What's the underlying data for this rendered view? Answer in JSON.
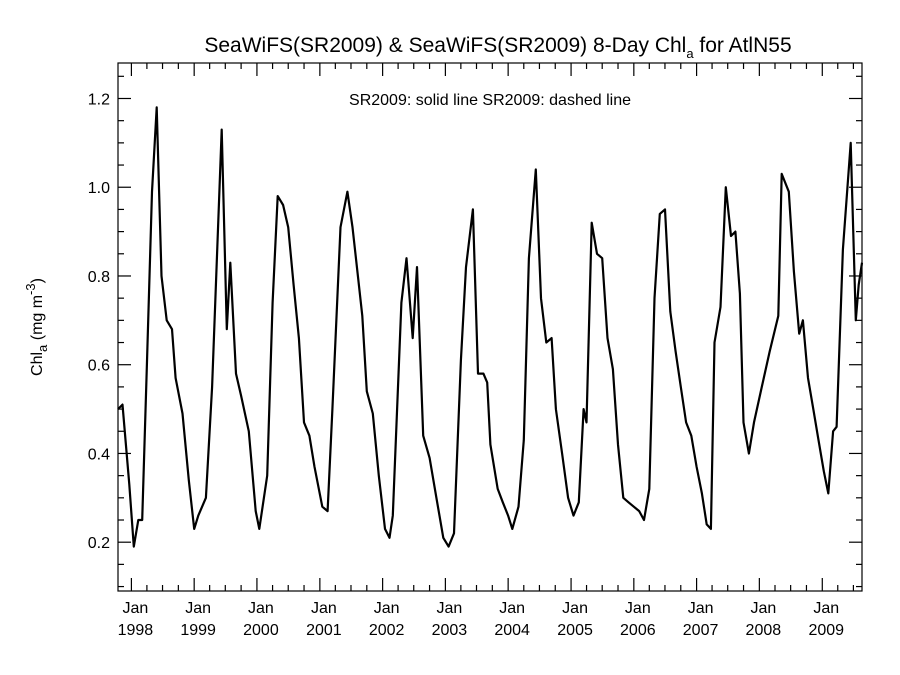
{
  "chart_data": {
    "type": "line",
    "title": {
      "main_prefix": "SeaWiFS(SR2009) & SeaWiFS(SR2009) 8-Day Chl",
      "main_sub": "a",
      "main_suffix": " for AtlN55"
    },
    "ylabel": {
      "prefix": "Chl",
      "sub": "a",
      "middle": " (mg m",
      "sup": "-3",
      "suffix": ")"
    },
    "annotation": "SR2009: solid line   SR2009: dashed line",
    "ylim": [
      0.09,
      1.28
    ],
    "yticks": [
      0.2,
      0.4,
      0.6,
      0.8,
      1.0,
      1.2
    ],
    "ytick_labels": [
      "0.2",
      "0.4",
      "0.6",
      "0.8",
      "1.0",
      "1.2"
    ],
    "xlim": [
      "1997-10-15",
      "2009-08-20"
    ],
    "xtick_labels": [
      {
        "date": "1998-01-01",
        "month": "Jan",
        "year": "1998"
      },
      {
        "date": "1999-01-01",
        "month": "Jan",
        "year": "1999"
      },
      {
        "date": "2000-01-01",
        "month": "Jan",
        "year": "2000"
      },
      {
        "date": "2001-01-01",
        "month": "Jan",
        "year": "2001"
      },
      {
        "date": "2002-01-01",
        "month": "Jan",
        "year": "2002"
      },
      {
        "date": "2003-01-01",
        "month": "Jan",
        "year": "2003"
      },
      {
        "date": "2004-01-01",
        "month": "Jan",
        "year": "2004"
      },
      {
        "date": "2005-01-01",
        "month": "Jan",
        "year": "2005"
      },
      {
        "date": "2006-01-01",
        "month": "Jan",
        "year": "2006"
      },
      {
        "date": "2007-01-01",
        "month": "Jan",
        "year": "2007"
      },
      {
        "date": "2008-01-01",
        "month": "Jan",
        "year": "2008"
      },
      {
        "date": "2009-01-01",
        "month": "Jan",
        "year": "2009"
      }
    ],
    "series": [
      {
        "style": "solid",
        "color": "#000000",
        "points": [
          [
            "1997-10-15",
            0.5
          ],
          [
            "1997-11-10",
            0.51
          ],
          [
            "1997-12-20",
            0.33
          ],
          [
            "1998-01-15",
            0.19
          ],
          [
            "1998-02-10",
            0.25
          ],
          [
            "1998-03-05",
            0.25
          ],
          [
            "1998-04-01",
            0.6
          ],
          [
            "1998-05-01",
            0.99
          ],
          [
            "1998-05-28",
            1.18
          ],
          [
            "1998-06-25",
            0.8
          ],
          [
            "1998-07-25",
            0.7
          ],
          [
            "1998-08-25",
            0.68
          ],
          [
            "1998-09-15",
            0.57
          ],
          [
            "1998-10-25",
            0.49
          ],
          [
            "1998-12-01",
            0.34
          ],
          [
            "1999-01-01",
            0.23
          ],
          [
            "1999-01-25",
            0.26
          ],
          [
            "1999-03-10",
            0.3
          ],
          [
            "1999-04-15",
            0.55
          ],
          [
            "1999-06-10",
            1.13
          ],
          [
            "1999-07-10",
            0.68
          ],
          [
            "1999-07-30",
            0.83
          ],
          [
            "1999-09-01",
            0.58
          ],
          [
            "1999-10-01",
            0.53
          ],
          [
            "1999-11-15",
            0.45
          ],
          [
            "1999-12-25",
            0.27
          ],
          [
            "2000-01-15",
            0.23
          ],
          [
            "2000-03-01",
            0.35
          ],
          [
            "2000-04-01",
            0.74
          ],
          [
            "2000-05-01",
            0.98
          ],
          [
            "2000-06-01",
            0.96
          ],
          [
            "2000-07-01",
            0.91
          ],
          [
            "2000-08-01",
            0.78
          ],
          [
            "2000-09-01",
            0.66
          ],
          [
            "2000-10-01",
            0.47
          ],
          [
            "2000-11-01",
            0.44
          ],
          [
            "2000-12-01",
            0.37
          ],
          [
            "2001-01-15",
            0.28
          ],
          [
            "2001-02-15",
            0.27
          ],
          [
            "2001-03-15",
            0.5
          ],
          [
            "2001-05-01",
            0.91
          ],
          [
            "2001-06-10",
            0.99
          ],
          [
            "2001-07-10",
            0.91
          ],
          [
            "2001-08-10",
            0.8
          ],
          [
            "2001-09-05",
            0.71
          ],
          [
            "2001-10-01",
            0.54
          ],
          [
            "2001-11-05",
            0.49
          ],
          [
            "2001-12-10",
            0.35
          ],
          [
            "2002-01-15",
            0.23
          ],
          [
            "2002-02-10",
            0.21
          ],
          [
            "2002-03-01",
            0.26
          ],
          [
            "2002-04-20",
            0.74
          ],
          [
            "2002-05-20",
            0.84
          ],
          [
            "2002-06-25",
            0.66
          ],
          [
            "2002-07-20",
            0.82
          ],
          [
            "2002-08-25",
            0.44
          ],
          [
            "2002-10-01",
            0.39
          ],
          [
            "2002-11-10",
            0.3
          ],
          [
            "2002-12-20",
            0.21
          ],
          [
            "2003-01-20",
            0.19
          ],
          [
            "2003-02-20",
            0.22
          ],
          [
            "2003-04-01",
            0.61
          ],
          [
            "2003-05-01",
            0.82
          ],
          [
            "2003-06-10",
            0.95
          ],
          [
            "2003-07-10",
            0.58
          ],
          [
            "2003-08-10",
            0.58
          ],
          [
            "2003-09-01",
            0.56
          ],
          [
            "2003-09-20",
            0.42
          ],
          [
            "2003-11-01",
            0.32
          ],
          [
            "2003-12-01",
            0.29
          ],
          [
            "2004-01-01",
            0.26
          ],
          [
            "2004-01-25",
            0.23
          ],
          [
            "2004-03-01",
            0.28
          ],
          [
            "2004-04-01",
            0.43
          ],
          [
            "2004-05-01",
            0.84
          ],
          [
            "2004-06-10",
            1.04
          ],
          [
            "2004-07-10",
            0.75
          ],
          [
            "2004-08-10",
            0.65
          ],
          [
            "2004-09-10",
            0.66
          ],
          [
            "2004-10-05",
            0.5
          ],
          [
            "2004-11-10",
            0.4
          ],
          [
            "2004-12-15",
            0.3
          ],
          [
            "2005-01-15",
            0.26
          ],
          [
            "2005-02-15",
            0.29
          ],
          [
            "2005-03-15",
            0.5
          ],
          [
            "2005-04-01",
            0.47
          ],
          [
            "2005-05-01",
            0.92
          ],
          [
            "2005-06-01",
            0.85
          ],
          [
            "2005-07-01",
            0.84
          ],
          [
            "2005-08-01",
            0.66
          ],
          [
            "2005-09-01",
            0.59
          ],
          [
            "2005-10-01",
            0.42
          ],
          [
            "2005-11-01",
            0.3
          ],
          [
            "2005-12-01",
            0.29
          ],
          [
            "2006-01-01",
            0.28
          ],
          [
            "2006-02-01",
            0.27
          ],
          [
            "2006-03-01",
            0.25
          ],
          [
            "2006-04-01",
            0.32
          ],
          [
            "2006-05-01",
            0.75
          ],
          [
            "2006-06-01",
            0.94
          ],
          [
            "2006-07-01",
            0.95
          ],
          [
            "2006-08-01",
            0.72
          ],
          [
            "2006-09-01",
            0.63
          ],
          [
            "2006-10-01",
            0.55
          ],
          [
            "2006-11-01",
            0.47
          ],
          [
            "2006-12-01",
            0.44
          ],
          [
            "2007-01-01",
            0.37
          ],
          [
            "2007-02-01",
            0.31
          ],
          [
            "2007-03-01",
            0.24
          ],
          [
            "2007-03-25",
            0.23
          ],
          [
            "2007-04-15",
            0.65
          ],
          [
            "2007-05-20",
            0.73
          ],
          [
            "2007-06-20",
            1.0
          ],
          [
            "2007-07-20",
            0.89
          ],
          [
            "2007-08-15",
            0.9
          ],
          [
            "2007-09-10",
            0.76
          ],
          [
            "2007-10-01",
            0.47
          ],
          [
            "2007-11-01",
            0.4
          ],
          [
            "2007-12-01",
            0.47
          ],
          [
            "2008-01-15",
            0.55
          ],
          [
            "2008-03-01",
            0.63
          ],
          [
            "2008-04-20",
            0.71
          ],
          [
            "2008-05-10",
            1.03
          ],
          [
            "2008-06-20",
            0.99
          ],
          [
            "2008-07-20",
            0.81
          ],
          [
            "2008-08-20",
            0.67
          ],
          [
            "2008-09-10",
            0.7
          ],
          [
            "2008-10-10",
            0.57
          ],
          [
            "2008-11-10",
            0.5
          ],
          [
            "2008-12-10",
            0.43
          ],
          [
            "2009-01-10",
            0.36
          ],
          [
            "2009-02-05",
            0.31
          ],
          [
            "2009-03-05",
            0.45
          ],
          [
            "2009-03-25",
            0.46
          ],
          [
            "2009-05-01",
            0.86
          ],
          [
            "2009-06-15",
            1.1
          ],
          [
            "2009-07-15",
            0.7
          ],
          [
            "2009-08-01",
            0.78
          ],
          [
            "2009-08-20",
            0.83
          ]
        ]
      }
    ]
  }
}
